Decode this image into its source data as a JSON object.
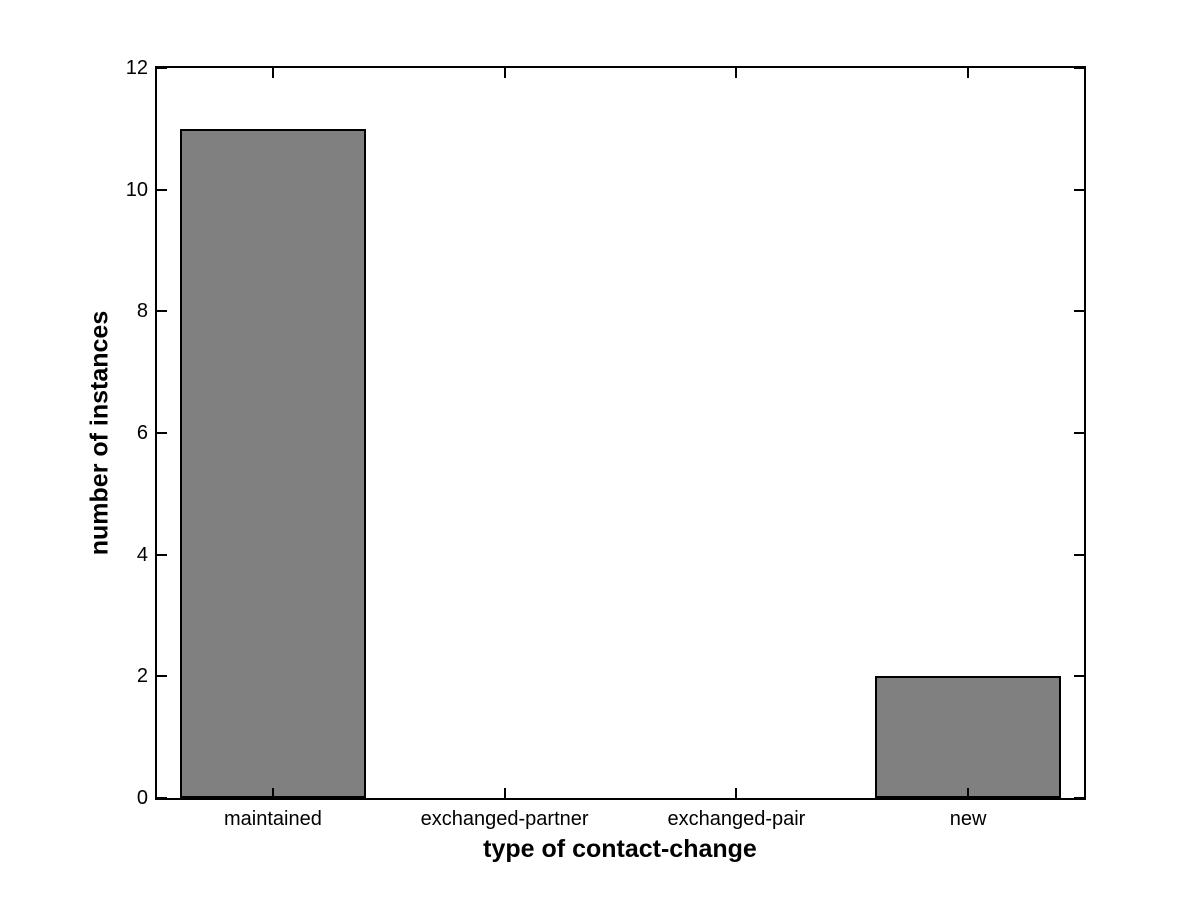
{
  "chart_data": {
    "type": "bar",
    "categories": [
      "maintained",
      "exchanged-partner",
      "exchanged-pair",
      "new"
    ],
    "values": [
      11,
      0,
      0,
      2
    ],
    "xlabel": "type of contact-change",
    "ylabel": "number of instances",
    "ylim": [
      0,
      12
    ],
    "yticks": [
      0,
      2,
      4,
      6,
      8,
      10,
      12
    ],
    "bar_width_fraction": 0.8,
    "grid": false,
    "legend": null,
    "colors": {
      "bar_fill": "#808080",
      "bar_edge": "#000000",
      "axis": "#000000",
      "text": "#000000",
      "background": "#ffffff"
    }
  }
}
